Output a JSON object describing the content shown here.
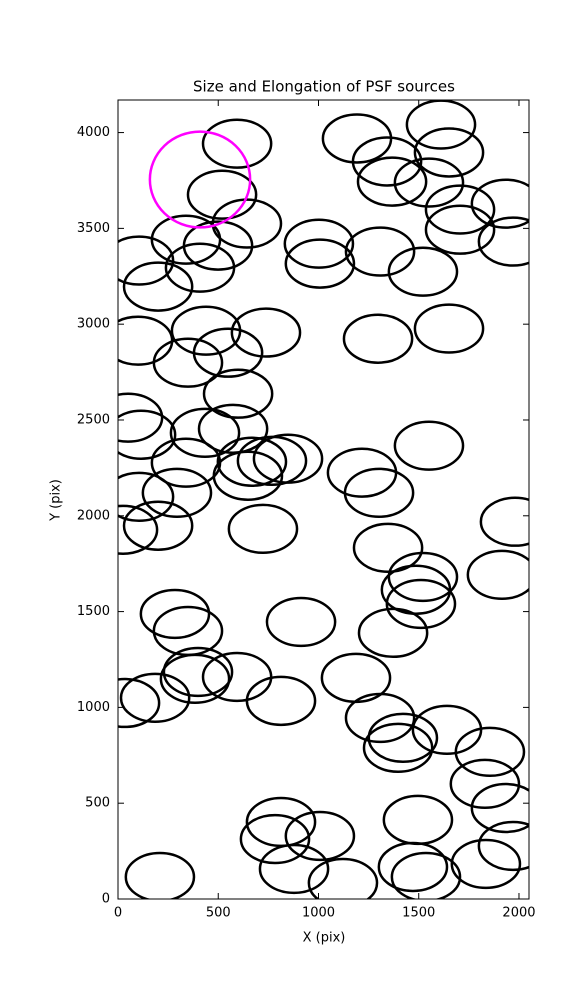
{
  "chart_data": {
    "type": "ellipse",
    "title": "Size and Elongation of PSF sources",
    "x_label": "X (pix)",
    "y_label": "Y (pix)",
    "xlim": [
      0,
      2050
    ],
    "ylim": [
      0,
      4170
    ],
    "xticks": [
      0,
      500,
      1000,
      1500,
      2000
    ],
    "yticks": [
      0,
      500,
      1000,
      1500,
      2000,
      2500,
      3000,
      3500,
      4000
    ],
    "series": [
      {
        "color": "#000000",
        "width": 340,
        "height": 250,
        "x": [
          594,
          1192,
          1611,
          1651,
          1342,
          1367,
          1551,
          1706,
          1935,
          1706,
          1970,
          519,
          643,
          339,
          499,
          409,
          105,
          200,
          1002,
          1007,
          1307,
          1521,
          100,
          439,
          738,
          349,
          549,
          1297,
          1651,
          599,
          50,
          115,
          434,
          574,
          668,
          648,
          768,
          848,
          339,
          294,
          105,
          25,
          200,
          723,
          1217,
          1302,
          1551,
          1980,
          1347,
          1521,
          1915,
          1486,
          1511,
          1372,
          913,
          284,
          349,
          399,
          384,
          594,
          35,
          185,
          813,
          1187,
          1307,
          1421,
          1397,
          1641,
          1855,
          1830,
          1935,
          1970,
          1835,
          1496,
          1471,
          1536,
          813,
          783,
          1007,
          878,
          1122,
          209
        ],
        "values": [
          3942,
          3969,
          4042,
          3896,
          3849,
          3744,
          3739,
          3598,
          3629,
          3493,
          3431,
          3676,
          3525,
          3441,
          3410,
          3295,
          3332,
          3196,
          3420,
          3316,
          3379,
          3274,
          2914,
          2966,
          2956,
          2799,
          2851,
          2924,
          2977,
          2637,
          2512,
          2423,
          2433,
          2454,
          2282,
          2209,
          2287,
          2298,
          2277,
          2120,
          2099,
          1927,
          1948,
          1932,
          2225,
          2120,
          2366,
          1969,
          1833,
          1681,
          1692,
          1614,
          1540,
          1389,
          1446,
          1488,
          1399,
          1185,
          1149,
          1159,
          1023,
          1050,
          1034,
          1154,
          945,
          841,
          789,
          883,
          768,
          601,
          475,
          277,
          183,
          413,
          167,
          115,
          402,
          313,
          329,
          157,
          84,
          115
        ]
      },
      {
        "color": "#ff00ff",
        "width": 500,
        "height": 500,
        "x": [
          409
        ],
        "values": [
          3755
        ]
      }
    ]
  }
}
